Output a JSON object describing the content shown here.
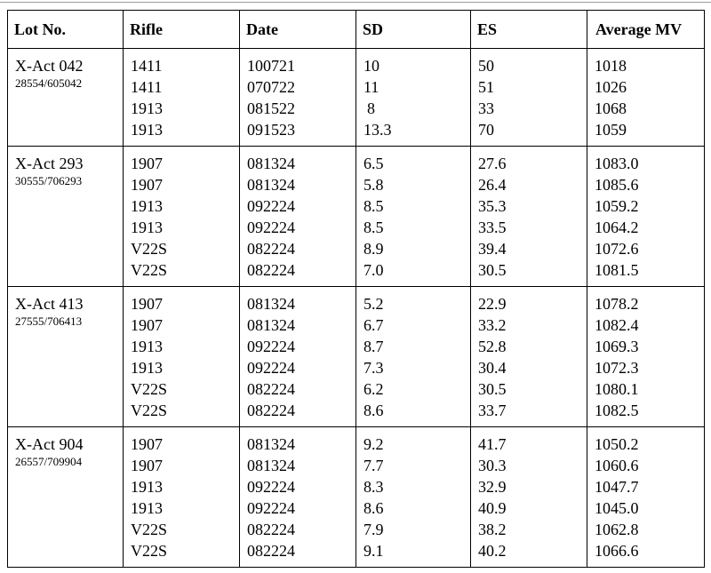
{
  "table": {
    "headers": {
      "lot": "Lot No.",
      "rifle": "Rifle",
      "date": "Date",
      "sd": "SD",
      "es": "ES",
      "mv": "Average MV"
    },
    "groups": [
      {
        "lot": "X-Act 042",
        "code": "28554/605042",
        "rifle": [
          "1411",
          "1411",
          "1913",
          "1913"
        ],
        "date": [
          "100721",
          "070722",
          "081522",
          "091523"
        ],
        "sd": [
          "10",
          "11",
          "8",
          "13.3"
        ],
        "es": [
          "50",
          "51",
          "33",
          "70"
        ],
        "mv": [
          "1018",
          "1026",
          "1068",
          "1059"
        ]
      },
      {
        "lot": "X-Act 293",
        "code": "30555/706293",
        "rifle": [
          "1907",
          "1907",
          "1913",
          "1913",
          "V22S",
          "V22S"
        ],
        "date": [
          "081324",
          "081324",
          "092224",
          "092224",
          "082224",
          "082224"
        ],
        "sd": [
          "6.5",
          "5.8",
          "8.5",
          "8.5",
          "8.9",
          "7.0"
        ],
        "es": [
          "27.6",
          "26.4",
          "35.3",
          "33.5",
          "39.4",
          "30.5"
        ],
        "mv": [
          "1083.0",
          "1085.6",
          "1059.2",
          "1064.2",
          "1072.6",
          "1081.5"
        ]
      },
      {
        "lot": "X-Act 413",
        "code": "27555/706413",
        "rifle": [
          "1907",
          "1907",
          "1913",
          "1913",
          "V22S",
          "V22S"
        ],
        "date": [
          "081324",
          "081324",
          "092224",
          "092224",
          "082224",
          "082224"
        ],
        "sd": [
          "5.2",
          "6.7",
          "8.7",
          "7.3",
          "6.2",
          "8.6"
        ],
        "es": [
          "22.9",
          "33.2",
          "52.8",
          "30.4",
          "30.5",
          "33.7"
        ],
        "mv": [
          "1078.2",
          "1082.4",
          "1069.3",
          "1072.3",
          "1080.1",
          "1082.5"
        ]
      },
      {
        "lot": "X-Act 904",
        "code": "26557/709904",
        "rifle": [
          "1907",
          "1907",
          "1913",
          "1913",
          "V22S",
          "V22S"
        ],
        "date": [
          "081324",
          "081324",
          "092224",
          "092224",
          "082224",
          "082224"
        ],
        "sd": [
          "9.2",
          "7.7",
          "8.3",
          "8.6",
          "7.9",
          "9.1"
        ],
        "es": [
          "41.7",
          "30.3",
          "32.9",
          "40.9",
          "38.2",
          "40.2"
        ],
        "mv": [
          "1050.2",
          "1060.6",
          "1047.7",
          "1045.0",
          "1062.8",
          "1066.6"
        ]
      }
    ]
  }
}
